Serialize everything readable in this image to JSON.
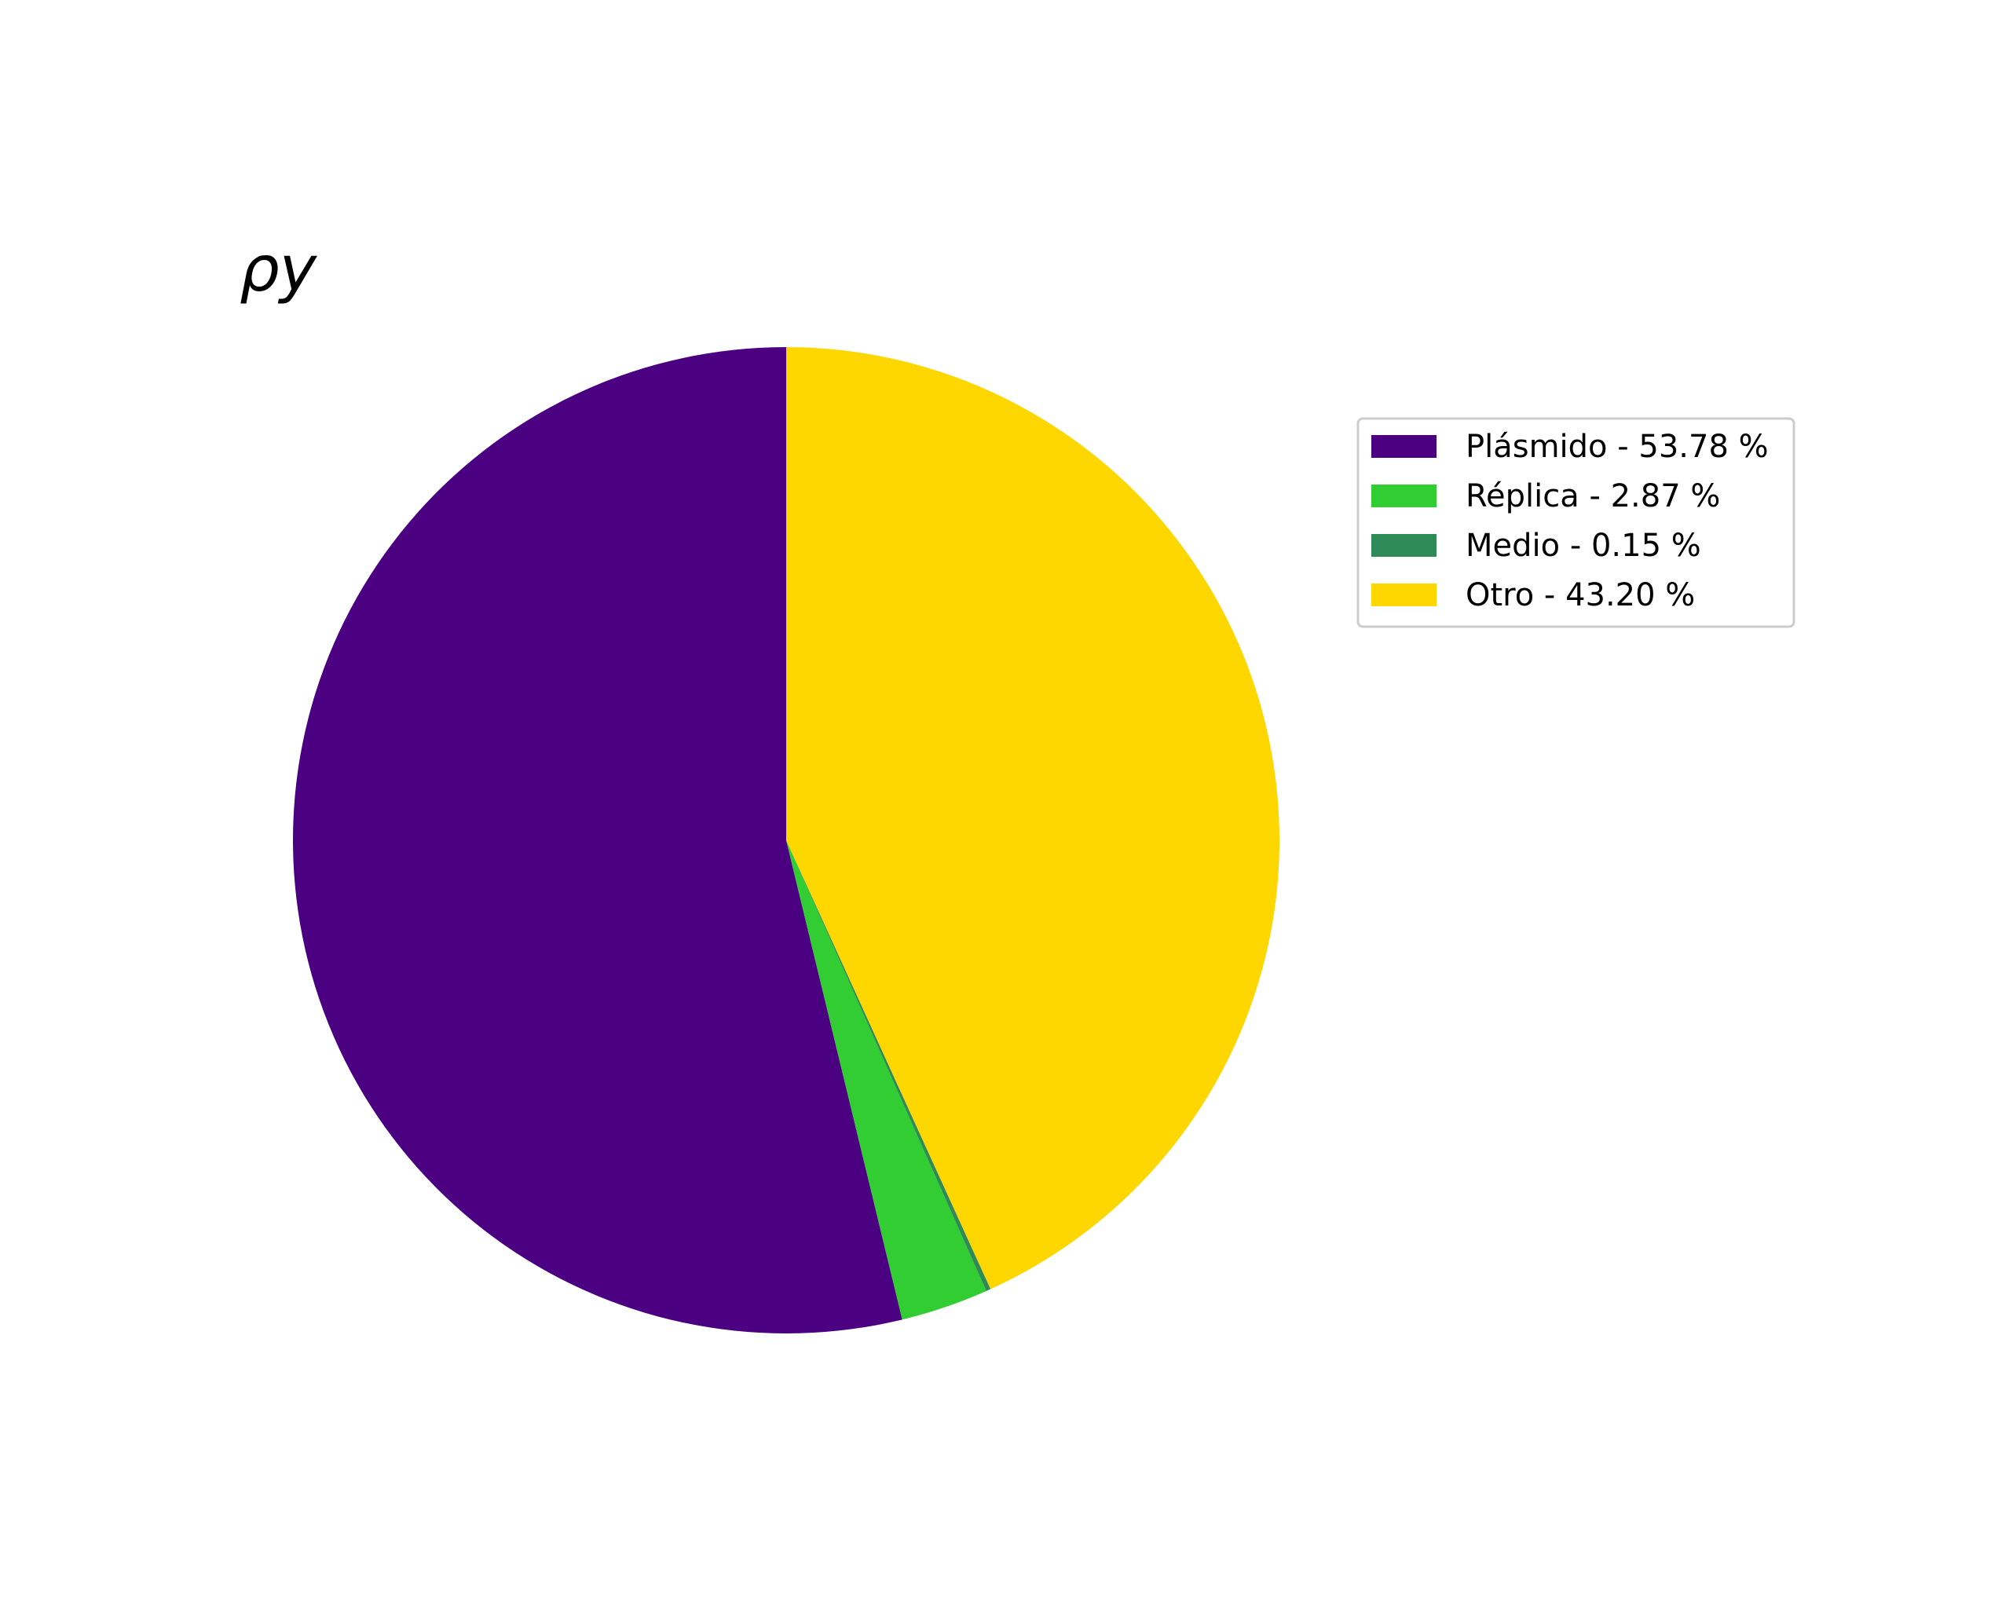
{
  "chart_data": {
    "type": "pie",
    "title": "ρy",
    "start_angle_deg": 90,
    "direction": "counterclockwise",
    "legend_position": "right",
    "slices": [
      {
        "label": "Plásmido",
        "legend_text": "Plásmido - 53.78 %",
        "value": 53.78,
        "color": "#4b0082"
      },
      {
        "label": "Réplica",
        "legend_text": "Réplica - 2.87 %",
        "value": 2.87,
        "color": "#32cd32"
      },
      {
        "label": "Medio",
        "legend_text": "Medio - 0.15 %",
        "value": 0.15,
        "color": "#2e8b57"
      },
      {
        "label": "Otro",
        "legend_text": "Otro - 43.20 %",
        "value": 43.2,
        "color": "#ffd700"
      }
    ]
  }
}
